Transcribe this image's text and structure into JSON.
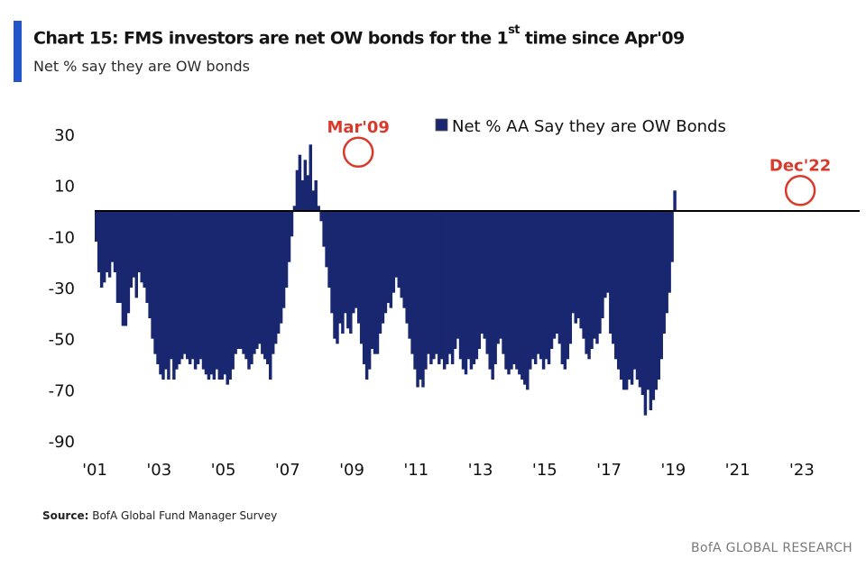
{
  "header": {
    "title_main": "Chart 15: FMS investors are net OW bonds for the 1",
    "title_sup": "st",
    "title_tail": " time since Apr'09",
    "subtitle": "Net % say they are OW bonds",
    "accent_color": "#2155c9"
  },
  "footer": {
    "source_label": "Source:",
    "source_text": " BofA Global Fund Manager Survey",
    "brand": "BofA GLOBAL RESEARCH"
  },
  "chart_data": {
    "type": "bar",
    "legend": {
      "label": "Net % AA Say they are OW Bonds",
      "position": "top-right",
      "color": "#192770"
    },
    "series_color": "#192770",
    "zero_line_color": "#000000",
    "annotations": [
      {
        "label": "Mar'09",
        "year": 2009.2,
        "value": 23,
        "color": "#d93a2b"
      },
      {
        "label": "Dec'22",
        "year": 2022.95,
        "value": 8,
        "color": "#d93a2b"
      }
    ],
    "ylim": [
      -90,
      30
    ],
    "yticks": [
      30,
      10,
      -10,
      -30,
      -50,
      -70,
      -90
    ],
    "xlim": [
      2001,
      2024.8
    ],
    "xticks": [
      {
        "label": "'01",
        "year": 2001
      },
      {
        "label": "'03",
        "year": 2003
      },
      {
        "label": "'05",
        "year": 2005
      },
      {
        "label": "'07",
        "year": 2007
      },
      {
        "label": "'09",
        "year": 2009
      },
      {
        "label": "'11",
        "year": 2011
      },
      {
        "label": "'13",
        "year": 2013
      },
      {
        "label": "'15",
        "year": 2015
      },
      {
        "label": "'17",
        "year": 2017
      },
      {
        "label": "'19",
        "year": 2019
      },
      {
        "label": "'21",
        "year": 2021
      },
      {
        "label": "'23",
        "year": 2023
      }
    ],
    "start": "2001-01",
    "frequency": "monthly",
    "values": [
      -12,
      -24,
      -30,
      -28,
      -24,
      -26,
      -20,
      -24,
      -36,
      -36,
      -45,
      -45,
      -40,
      -30,
      -26,
      -34,
      -24,
      -28,
      -30,
      -36,
      -42,
      -50,
      -56,
      -60,
      -64,
      -66,
      -62,
      -66,
      -58,
      -66,
      -62,
      -60,
      -58,
      -56,
      -58,
      -60,
      -58,
      -62,
      -60,
      -58,
      -62,
      -64,
      -66,
      -64,
      -66,
      -62,
      -66,
      -66,
      -64,
      -68,
      -66,
      -62,
      -56,
      -54,
      -54,
      -56,
      -58,
      -62,
      -60,
      -56,
      -54,
      -52,
      -56,
      -58,
      -60,
      -66,
      -56,
      -52,
      -48,
      -44,
      -38,
      -30,
      -20,
      -10,
      2,
      16,
      22,
      12,
      20,
      14,
      26,
      8,
      12,
      2,
      -4,
      -14,
      -22,
      -30,
      -40,
      -50,
      -52,
      -44,
      -48,
      -40,
      -46,
      -48,
      -40,
      -38,
      -44,
      -52,
      -60,
      -66,
      -62,
      -54,
      -56,
      -56,
      -48,
      -44,
      -40,
      -36,
      -38,
      -32,
      -26,
      -30,
      -34,
      -38,
      -44,
      -50,
      -56,
      -62,
      -69,
      -66,
      -69,
      -62,
      -56,
      -60,
      -58,
      -56,
      -60,
      -58,
      -62,
      -60,
      -56,
      -60,
      -54,
      -50,
      -58,
      -62,
      -64,
      -58,
      -62,
      -60,
      -58,
      -54,
      -48,
      -50,
      -56,
      -62,
      -66,
      -60,
      -52,
      -50,
      -56,
      -62,
      -64,
      -62,
      -60,
      -62,
      -64,
      -66,
      -68,
      -70,
      -62,
      -58,
      -60,
      -56,
      -58,
      -62,
      -58,
      -60,
      -54,
      -50,
      -48,
      -52,
      -60,
      -62,
      -58,
      -52,
      -40,
      -44,
      -42,
      -46,
      -50,
      -56,
      -58,
      -54,
      -50,
      -52,
      -48,
      -42,
      -34,
      -32,
      -48,
      -52,
      -58,
      -62,
      -66,
      -70,
      -70,
      -66,
      -68,
      -62,
      -66,
      -69,
      -72,
      -80,
      -70,
      -78,
      -74,
      -70,
      -66,
      -58,
      -48,
      -40,
      -32,
      -20,
      8
    ]
  }
}
